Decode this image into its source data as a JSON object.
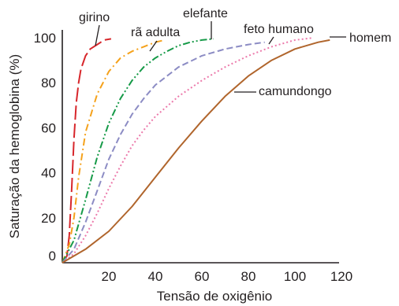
{
  "chart_data": {
    "type": "line",
    "xlabel": "Tensão de oxigênio",
    "ylabel": "Saturação da hemoglobina (%)",
    "xlim": [
      0,
      120
    ],
    "ylim": [
      0,
      100
    ],
    "x_ticks": [
      20,
      40,
      60,
      80,
      100,
      120
    ],
    "y_ticks": [
      0,
      20,
      40,
      60,
      80,
      100
    ],
    "grid": false,
    "series": [
      {
        "name": "girino",
        "color": "#d7262b",
        "dash": "long-dash",
        "points": [
          [
            0,
            0
          ],
          [
            2,
            3
          ],
          [
            3,
            12
          ],
          [
            4,
            32
          ],
          [
            5,
            55
          ],
          [
            6,
            71
          ],
          [
            7,
            80
          ],
          [
            8,
            86
          ],
          [
            10,
            92
          ],
          [
            12,
            95
          ],
          [
            15,
            97
          ],
          [
            18,
            99
          ],
          [
            21,
            99.5
          ]
        ]
      },
      {
        "name": "rã adulta",
        "color": "#f5a21c",
        "dash": "dash-dot",
        "points": [
          [
            0,
            0
          ],
          [
            3,
            8
          ],
          [
            5,
            20
          ],
          [
            7,
            38
          ],
          [
            10,
            58
          ],
          [
            15,
            75
          ],
          [
            20,
            85
          ],
          [
            25,
            91
          ],
          [
            30,
            94
          ],
          [
            35,
            96
          ],
          [
            40,
            98
          ],
          [
            44,
            99
          ]
        ]
      },
      {
        "name": "elefante",
        "color": "#169a48",
        "dash": "dash-dot-dot",
        "points": [
          [
            0,
            0
          ],
          [
            5,
            10
          ],
          [
            10,
            28
          ],
          [
            15,
            47
          ],
          [
            20,
            62
          ],
          [
            25,
            73
          ],
          [
            30,
            81
          ],
          [
            35,
            87
          ],
          [
            40,
            91
          ],
          [
            45,
            94
          ],
          [
            50,
            96.5
          ],
          [
            55,
            98
          ],
          [
            60,
            99
          ],
          [
            65,
            99.5
          ]
        ]
      },
      {
        "name": "feto humano",
        "color": "#8c8cc4",
        "dash": "dash",
        "points": [
          [
            0,
            0
          ],
          [
            5,
            6
          ],
          [
            10,
            18
          ],
          [
            15,
            32
          ],
          [
            20,
            46
          ],
          [
            25,
            57
          ],
          [
            30,
            66
          ],
          [
            35,
            73
          ],
          [
            40,
            79
          ],
          [
            50,
            87
          ],
          [
            60,
            92
          ],
          [
            70,
            95
          ],
          [
            80,
            97
          ],
          [
            87,
            98
          ]
        ]
      },
      {
        "name": "homem",
        "color": "#ec7aab",
        "dash": "dot",
        "points": [
          [
            0,
            0
          ],
          [
            5,
            4
          ],
          [
            10,
            12
          ],
          [
            15,
            22
          ],
          [
            20,
            33
          ],
          [
            25,
            43
          ],
          [
            30,
            52
          ],
          [
            35,
            59
          ],
          [
            40,
            65
          ],
          [
            50,
            74
          ],
          [
            60,
            81
          ],
          [
            70,
            87
          ],
          [
            80,
            92
          ],
          [
            90,
            96
          ],
          [
            100,
            99
          ],
          [
            108,
            100
          ]
        ]
      },
      {
        "name": "camundongo",
        "color": "#b0652c",
        "dash": "solid",
        "points": [
          [
            0,
            0
          ],
          [
            10,
            6
          ],
          [
            20,
            14
          ],
          [
            30,
            25
          ],
          [
            40,
            38
          ],
          [
            50,
            51
          ],
          [
            60,
            63
          ],
          [
            70,
            74
          ],
          [
            80,
            83
          ],
          [
            90,
            90
          ],
          [
            100,
            95
          ],
          [
            110,
            98
          ],
          [
            115,
            99
          ]
        ]
      }
    ]
  }
}
